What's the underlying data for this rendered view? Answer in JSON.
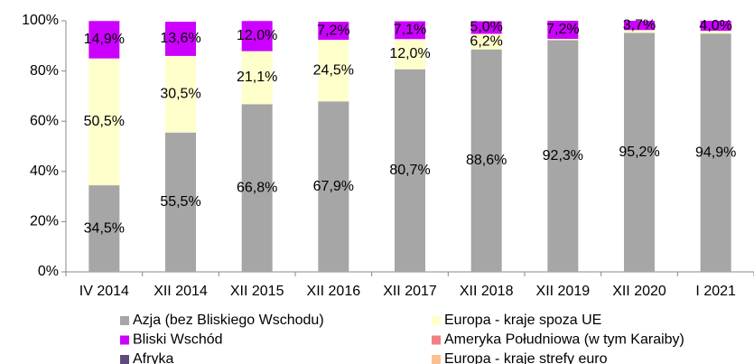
{
  "chart_data": {
    "type": "stacked_bar",
    "categories": [
      "IV 2014",
      "XII 2014",
      "XII 2015",
      "XII 2016",
      "XII 2017",
      "XII 2018",
      "XII 2019",
      "XII 2020",
      "I 2021"
    ],
    "series": [
      {
        "name": "Azja (bez Bliskiego Wschodu)",
        "color": "#a6a6a6",
        "values": [
          34.5,
          55.5,
          66.8,
          67.9,
          80.7,
          88.6,
          92.3,
          95.2,
          94.9
        ],
        "value_labels": [
          "34,5%",
          "55,5%",
          "66,8%",
          "67,9%",
          "80,7%",
          "88,6%",
          "92,3%",
          "95,2%",
          "94,9%"
        ]
      },
      {
        "name": "Europa - kraje spoza UE",
        "color": "#ffffcc",
        "values": [
          50.5,
          30.5,
          21.1,
          24.5,
          12.0,
          6.2,
          0.5,
          1.1,
          1.1
        ],
        "value_labels": [
          "50,5%",
          "30,5%",
          "21,1%",
          "24,5%",
          "12,0%",
          "6,2%",
          null,
          null,
          null
        ]
      },
      {
        "name": "Bliski Wschód",
        "color": "#cc00ff",
        "values": [
          14.9,
          13.6,
          12.0,
          7.2,
          7.1,
          5.0,
          7.2,
          3.7,
          4.0
        ],
        "value_labels": [
          "14,9%",
          "13,6%",
          "12,0%",
          "7,2%",
          "7,1%",
          "5,0%",
          "7,2%",
          "3,7%",
          "4,0%"
        ]
      },
      {
        "name": "Ameryka Południowa (w tym Karaiby)",
        "color": "#f08080",
        "values": [
          0,
          0,
          0,
          0,
          0,
          0,
          0,
          0,
          0
        ]
      },
      {
        "name": "Afryka",
        "color": "#604a7b",
        "values": [
          0,
          0,
          0,
          0,
          0,
          0,
          0,
          0,
          0
        ]
      },
      {
        "name": "Europa - kraje strefy euro",
        "color": "#fac090",
        "values": [
          0,
          0,
          0,
          0,
          0,
          0,
          0,
          0,
          0
        ]
      }
    ],
    "ylim": [
      0,
      100
    ],
    "yticks": [
      {
        "value": 0,
        "label": "0%"
      },
      {
        "value": 20,
        "label": "20%"
      },
      {
        "value": 40,
        "label": "40%"
      },
      {
        "value": 60,
        "label": "60%"
      },
      {
        "value": 80,
        "label": "80%"
      },
      {
        "value": 100,
        "label": "100%"
      }
    ],
    "grid": false
  }
}
